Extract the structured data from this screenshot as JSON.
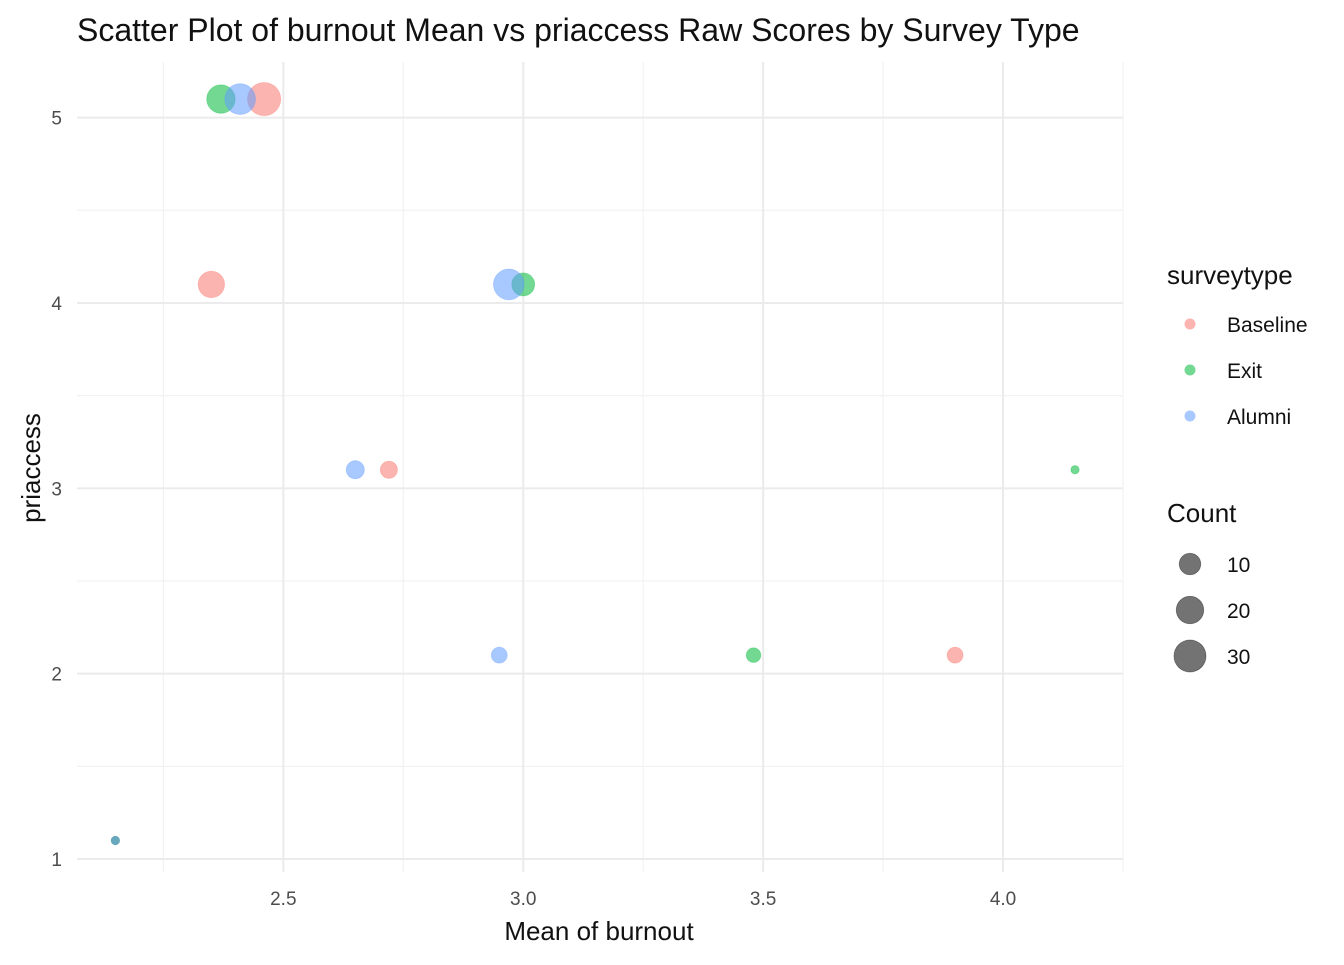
{
  "chart_data": {
    "type": "scatter",
    "title": "Scatter Plot of burnout Mean vs priaccess Raw Scores by Survey Type",
    "xlabel": "Mean of burnout",
    "ylabel": "priaccess",
    "xlim": [
      2.07,
      4.25
    ],
    "ylim": [
      0.93,
      5.3
    ],
    "x_ticks": [
      2.5,
      3.0,
      3.5,
      4.0
    ],
    "x_tick_labels": [
      "2.5",
      "3.0",
      "3.5",
      "4.0"
    ],
    "y_ticks": [
      1,
      2,
      3,
      4,
      5
    ],
    "y_tick_labels": [
      "1",
      "2",
      "3",
      "4",
      "5"
    ],
    "grid": true,
    "legend_position": "right",
    "color_legend": {
      "title": "surveytype",
      "entries": [
        "Baseline",
        "Exit",
        "Alumni"
      ]
    },
    "size_legend": {
      "title": "Count",
      "values": [
        10,
        20,
        30
      ],
      "labels": [
        "10",
        "20",
        "30"
      ]
    },
    "series": [
      {
        "name": "Baseline",
        "color": "#f8766d",
        "points": [
          {
            "x": 2.46,
            "y": 5.1,
            "count": 33
          },
          {
            "x": 2.35,
            "y": 4.1,
            "count": 18
          },
          {
            "x": 2.72,
            "y": 3.1,
            "count": 5
          },
          {
            "x": 3.9,
            "y": 2.1,
            "count": 4
          },
          {
            "x": 2.15,
            "y": 1.1,
            "count": 1
          }
        ]
      },
      {
        "name": "Exit",
        "color": "#00ba38",
        "points": [
          {
            "x": 2.37,
            "y": 5.1,
            "count": 22
          },
          {
            "x": 3.0,
            "y": 4.1,
            "count": 12
          },
          {
            "x": 3.48,
            "y": 2.1,
            "count": 3
          },
          {
            "x": 4.15,
            "y": 3.1,
            "count": 1
          },
          {
            "x": 2.15,
            "y": 1.1,
            "count": 1
          }
        ]
      },
      {
        "name": "Alumni",
        "color": "#619cff",
        "points": [
          {
            "x": 2.41,
            "y": 5.1,
            "count": 27
          },
          {
            "x": 2.97,
            "y": 4.1,
            "count": 27
          },
          {
            "x": 2.65,
            "y": 3.1,
            "count": 6
          },
          {
            "x": 2.95,
            "y": 2.1,
            "count": 4
          },
          {
            "x": 2.15,
            "y": 1.1,
            "count": 1
          }
        ]
      }
    ]
  }
}
